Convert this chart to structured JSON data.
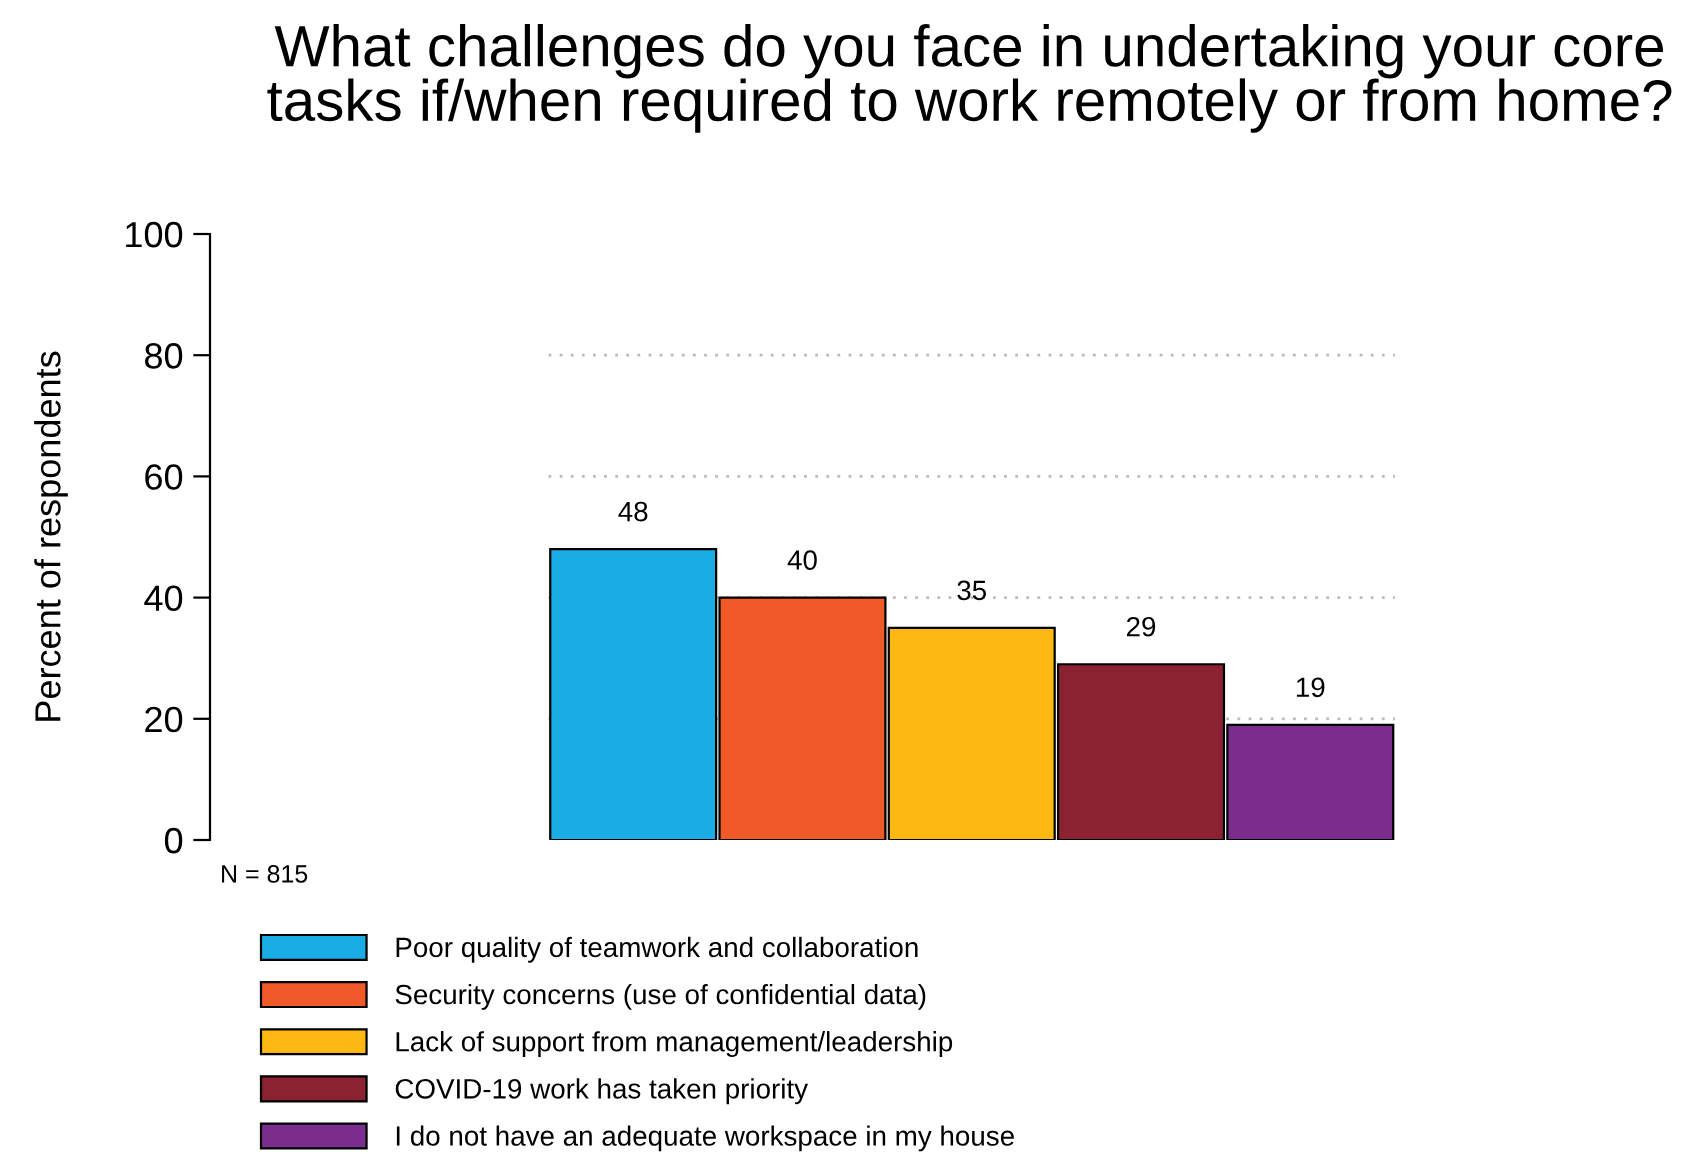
{
  "chart_data": {
    "type": "bar",
    "title": "What challenges do you face in undertaking your core tasks if/when required to work remotely or from home?",
    "ylabel": "Percent of respondents",
    "categories": [
      null
    ],
    "series": [
      {
        "name": "Poor quality of teamwork and collaboration",
        "color": "#1aace4",
        "values": [
          48
        ]
      },
      {
        "name": "Security concerns (use of confidential data)",
        "color": "#f05a28",
        "values": [
          40
        ]
      },
      {
        "name": "Lack of support from management/leadership",
        "color": "#fdb813",
        "values": [
          35
        ]
      },
      {
        "name": "COVID-19 work has taken priority",
        "color": "#8b2231",
        "values": [
          29
        ]
      },
      {
        "name": "I do not have an adequate workspace in my house",
        "color": "#7b2d8e",
        "values": [
          19
        ]
      }
    ],
    "ylim": [
      0,
      100
    ],
    "yticks": [
      0,
      20,
      40,
      60,
      80,
      100
    ],
    "grid": "y",
    "data_labels": true,
    "legend": "bottom",
    "annotations": [
      "N = 815"
    ]
  }
}
